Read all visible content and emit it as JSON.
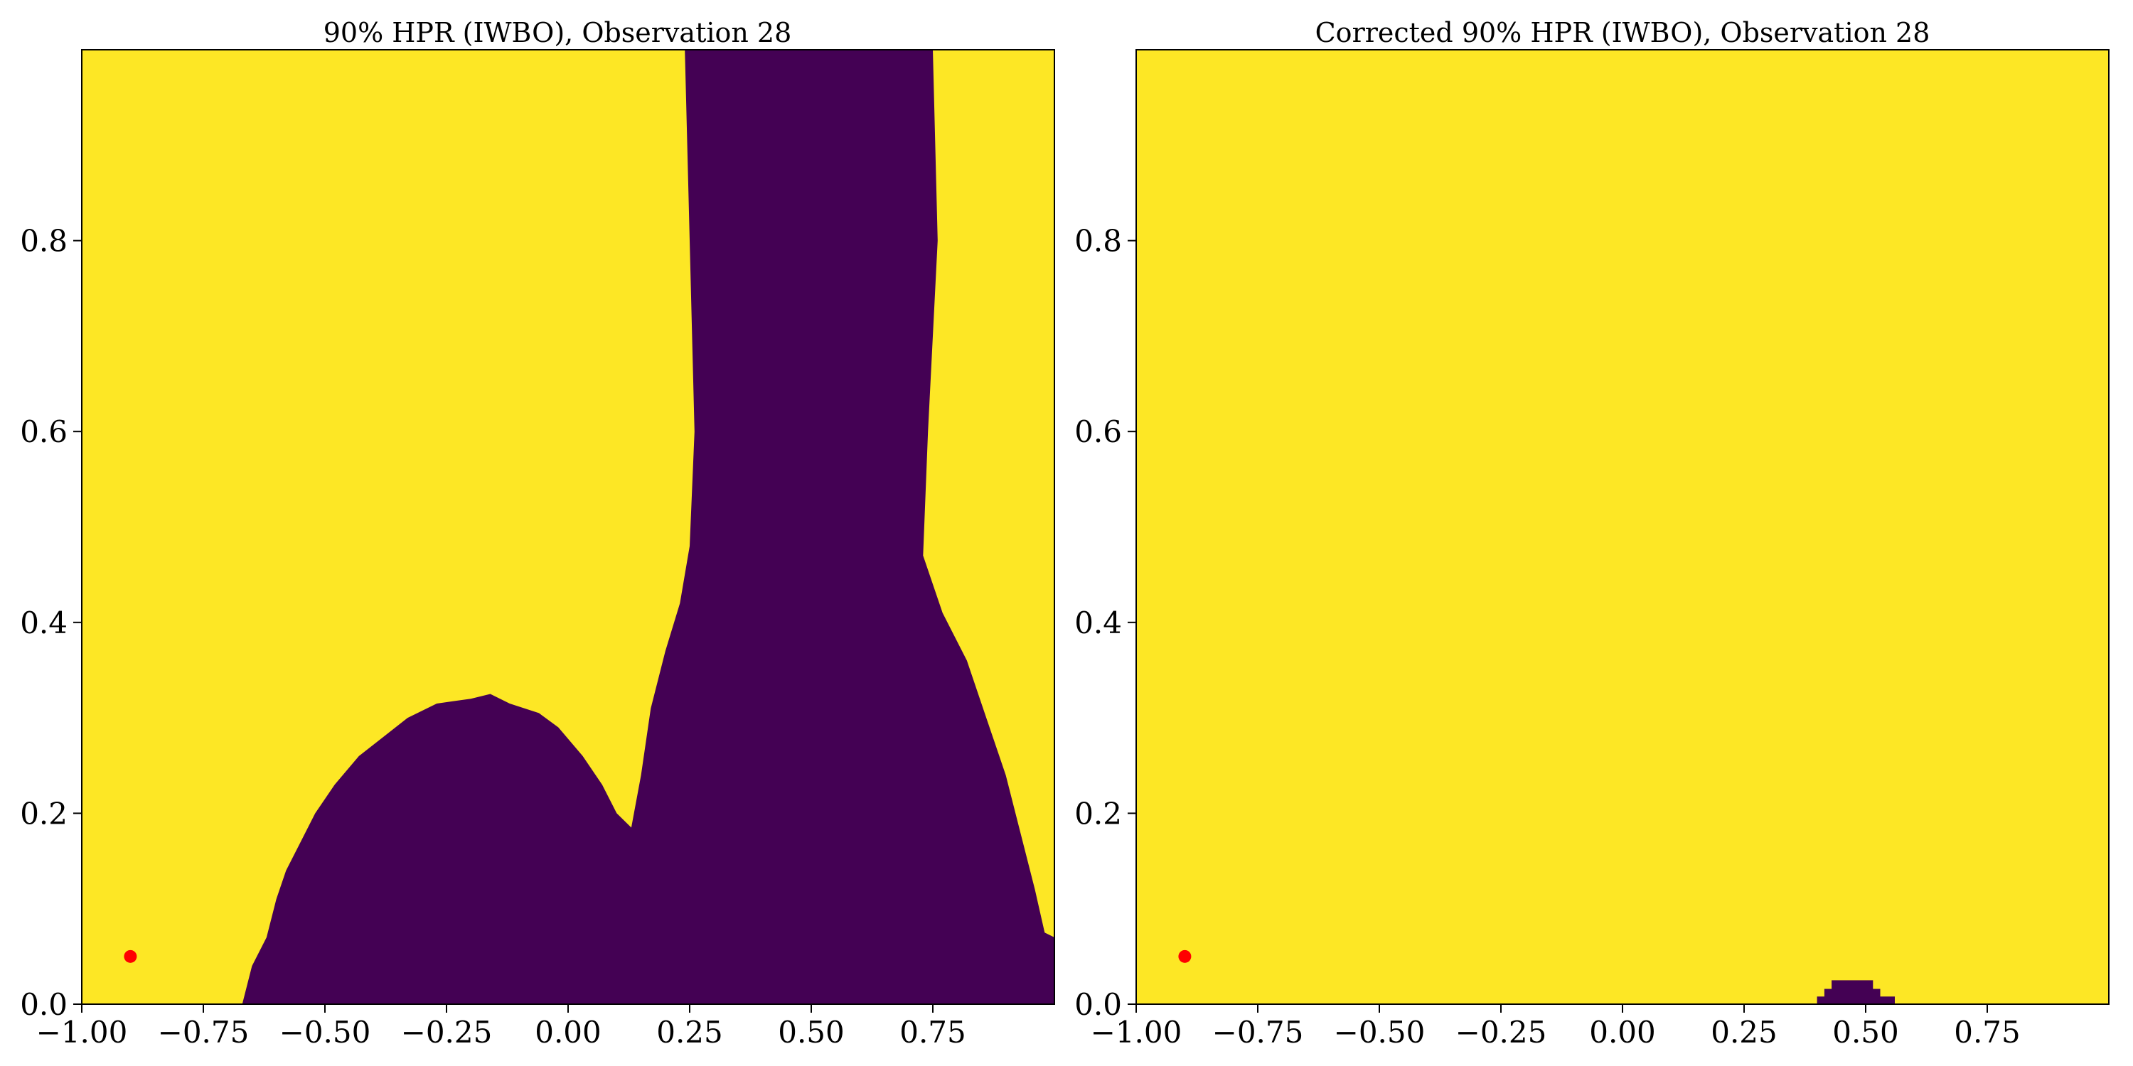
{
  "chart_data": [
    {
      "type": "heatmap",
      "title": "90% HPR (IWBO), Observation 28",
      "xlabel": "",
      "ylabel": "",
      "xlim": [
        -1.0,
        1.0
      ],
      "ylim": [
        0.0,
        1.0
      ],
      "x_ticks": [
        -1.0,
        -0.75,
        -0.5,
        -0.25,
        0.0,
        0.25,
        0.5,
        0.75
      ],
      "x_tick_labels": [
        "−1.00",
        "−0.75",
        "−0.50",
        "−0.25",
        "0.00",
        "0.25",
        "0.50",
        "0.75"
      ],
      "y_ticks": [
        0.0,
        0.2,
        0.4,
        0.6,
        0.8
      ],
      "y_tick_labels": [
        "0.0",
        "0.2",
        "0.4",
        "0.6",
        "0.8"
      ],
      "grid": false,
      "colors": {
        "inside_region": "#440154",
        "outside_region": "#fde725",
        "marker": "#ff0000"
      },
      "region": [
        {
          "x": -0.67,
          "y": 0.0
        },
        {
          "x": -0.65,
          "y": 0.04
        },
        {
          "x": -0.62,
          "y": 0.07
        },
        {
          "x": -0.6,
          "y": 0.11
        },
        {
          "x": -0.58,
          "y": 0.14
        },
        {
          "x": -0.55,
          "y": 0.17
        },
        {
          "x": -0.52,
          "y": 0.2
        },
        {
          "x": -0.48,
          "y": 0.23
        },
        {
          "x": -0.43,
          "y": 0.26
        },
        {
          "x": -0.38,
          "y": 0.28
        },
        {
          "x": -0.33,
          "y": 0.3
        },
        {
          "x": -0.27,
          "y": 0.315
        },
        {
          "x": -0.2,
          "y": 0.32
        },
        {
          "x": -0.16,
          "y": 0.325
        },
        {
          "x": -0.12,
          "y": 0.315
        },
        {
          "x": -0.06,
          "y": 0.305
        },
        {
          "x": -0.02,
          "y": 0.29
        },
        {
          "x": 0.03,
          "y": 0.26
        },
        {
          "x": 0.07,
          "y": 0.23
        },
        {
          "x": 0.1,
          "y": 0.2
        },
        {
          "x": 0.13,
          "y": 0.185
        },
        {
          "x": 0.15,
          "y": 0.24
        },
        {
          "x": 0.17,
          "y": 0.31
        },
        {
          "x": 0.2,
          "y": 0.37
        },
        {
          "x": 0.23,
          "y": 0.42
        },
        {
          "x": 0.25,
          "y": 0.48
        },
        {
          "x": 0.26,
          "y": 0.6
        },
        {
          "x": 0.25,
          "y": 0.8
        },
        {
          "x": 0.24,
          "y": 1.0
        },
        {
          "x": 0.75,
          "y": 1.0
        },
        {
          "x": 0.76,
          "y": 0.8
        },
        {
          "x": 0.74,
          "y": 0.6
        },
        {
          "x": 0.73,
          "y": 0.47
        },
        {
          "x": 0.77,
          "y": 0.41
        },
        {
          "x": 0.82,
          "y": 0.36
        },
        {
          "x": 0.86,
          "y": 0.3
        },
        {
          "x": 0.9,
          "y": 0.24
        },
        {
          "x": 0.93,
          "y": 0.18
        },
        {
          "x": 0.96,
          "y": 0.12
        },
        {
          "x": 0.98,
          "y": 0.075
        },
        {
          "x": 1.0,
          "y": 0.07
        },
        {
          "x": 1.0,
          "y": 0.0
        }
      ],
      "markers": [
        {
          "x": -0.9,
          "y": 0.05
        }
      ]
    },
    {
      "type": "heatmap",
      "title": "Corrected 90% HPR (IWBO), Observation 28",
      "xlabel": "",
      "ylabel": "",
      "xlim": [
        -1.0,
        1.0
      ],
      "ylim": [
        0.0,
        1.0
      ],
      "x_ticks": [
        -1.0,
        -0.75,
        -0.5,
        -0.25,
        0.0,
        0.25,
        0.5,
        0.75
      ],
      "x_tick_labels": [
        "−1.00",
        "−0.75",
        "−0.50",
        "−0.25",
        "0.00",
        "0.25",
        "0.50",
        "0.75"
      ],
      "y_ticks": [
        0.0,
        0.2,
        0.4,
        0.6,
        0.8
      ],
      "y_tick_labels": [
        "0.0",
        "0.2",
        "0.4",
        "0.6",
        "0.8"
      ],
      "grid": false,
      "colors": {
        "inside_region": "#440154",
        "outside_region": "#fde725",
        "marker": "#ff0000"
      },
      "region": [
        {
          "x": 0.4,
          "y": 0.0
        },
        {
          "x": 0.4,
          "y": 0.008
        },
        {
          "x": 0.415,
          "y": 0.008
        },
        {
          "x": 0.415,
          "y": 0.016
        },
        {
          "x": 0.43,
          "y": 0.016
        },
        {
          "x": 0.43,
          "y": 0.025
        },
        {
          "x": 0.515,
          "y": 0.025
        },
        {
          "x": 0.515,
          "y": 0.016
        },
        {
          "x": 0.53,
          "y": 0.016
        },
        {
          "x": 0.53,
          "y": 0.008
        },
        {
          "x": 0.56,
          "y": 0.008
        },
        {
          "x": 0.56,
          "y": 0.0
        }
      ],
      "markers": [
        {
          "x": -0.9,
          "y": 0.05
        }
      ]
    }
  ]
}
